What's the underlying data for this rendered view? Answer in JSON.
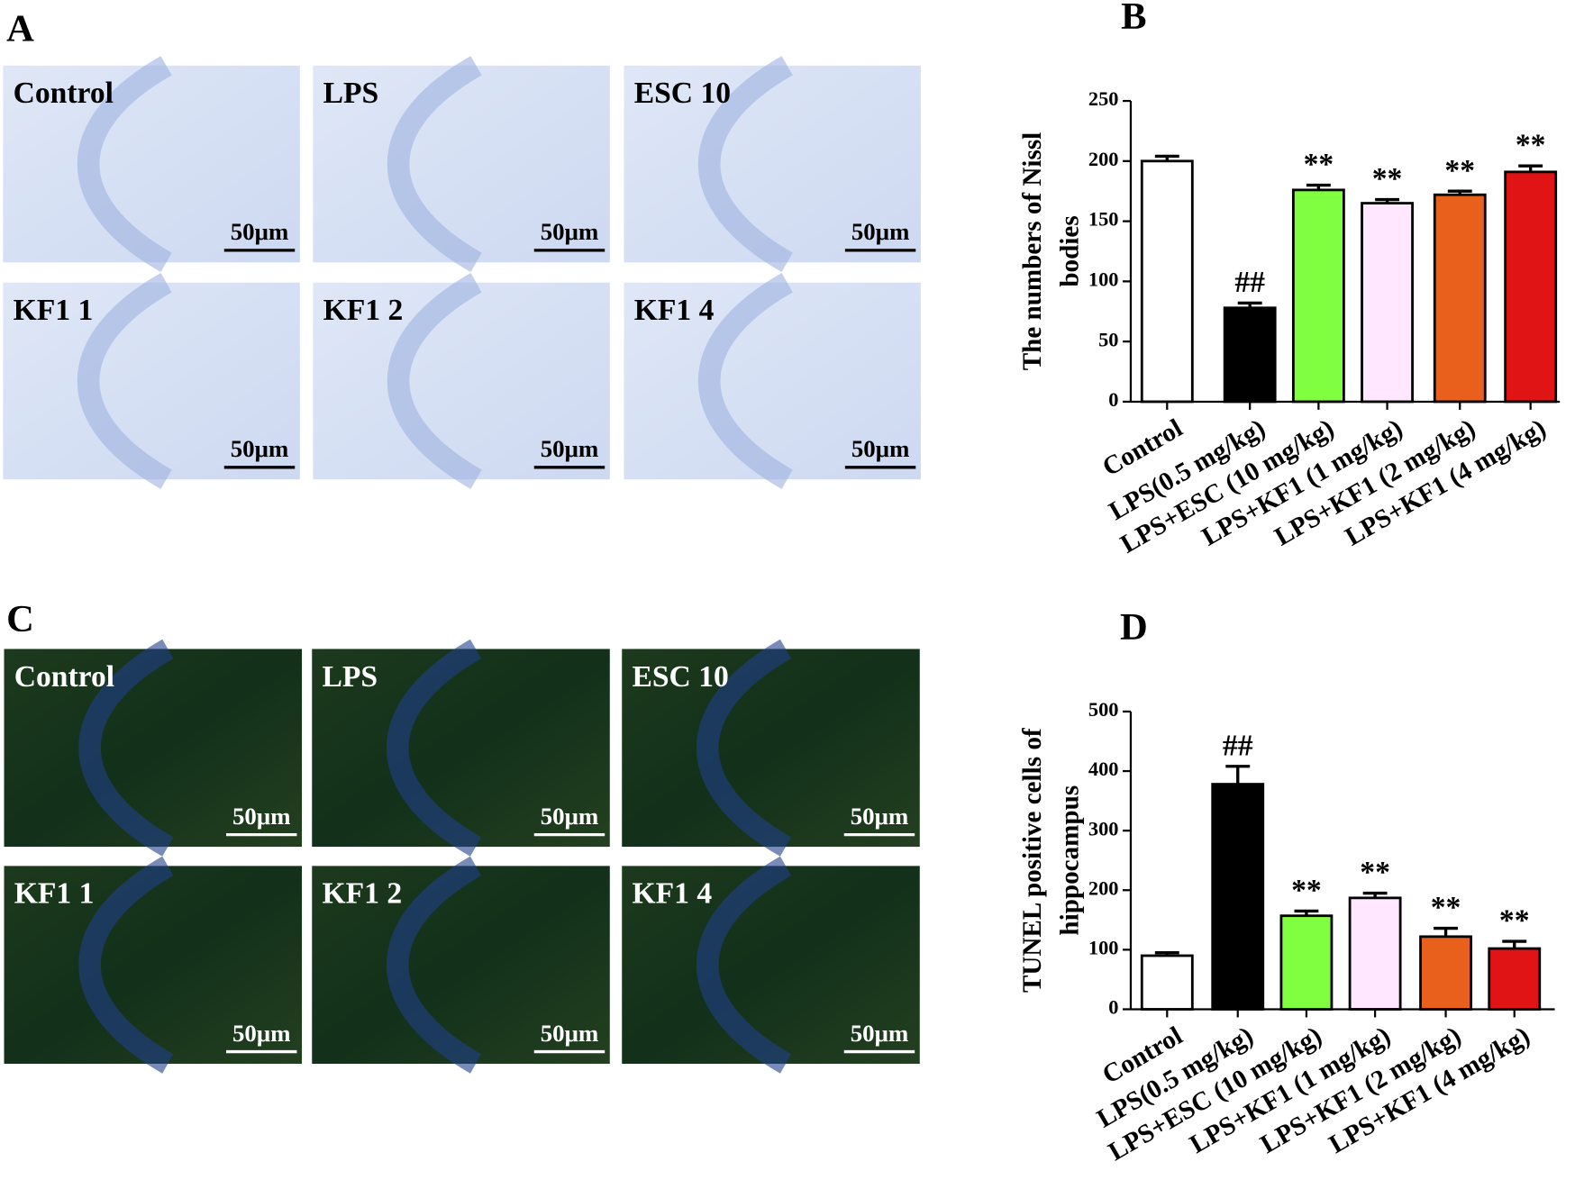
{
  "panels": [
    {
      "label": "A",
      "images": [
        {
          "label": "Control",
          "scale": "50μm"
        },
        {
          "label": "LPS",
          "scale": "50μm"
        },
        {
          "label": "ESC 10",
          "scale": "50μm"
        },
        {
          "label": "KF1 1",
          "scale": "50μm"
        },
        {
          "label": "KF1 2",
          "scale": "50μm"
        },
        {
          "label": "KF1 4",
          "scale": "50μm"
        }
      ]
    },
    {
      "label": "C",
      "images": [
        {
          "label": "Control",
          "scale": "50μm"
        },
        {
          "label": "LPS",
          "scale": "50μm"
        },
        {
          "label": "ESC 10",
          "scale": "50μm"
        },
        {
          "label": "KF1 1",
          "scale": "50μm"
        },
        {
          "label": "KF1 2",
          "scale": "50μm"
        },
        {
          "label": "KF1 4",
          "scale": "50μm"
        }
      ]
    }
  ],
  "chart_data": [
    {
      "type": "bar",
      "panel_label": "B",
      "ylabel": [
        "The numbers of  Nissl",
        "bodies"
      ],
      "categories": [
        "Control",
        "LPS(0.5 mg/kg)",
        "LPS+ESC (10 mg/kg)",
        "LPS+KF1 (1 mg/kg)",
        "LPS+KF1 (2 mg/kg)",
        "LPS+KF1 (4 mg/kg)"
      ],
      "values": [
        200,
        78,
        176,
        165,
        172,
        191
      ],
      "errors": [
        4,
        4,
        4,
        3,
        3,
        5
      ],
      "annotations": [
        null,
        "##",
        "**",
        "**",
        "**",
        "**"
      ],
      "colors": [
        "#ffffff",
        "#000000",
        "#80ff40",
        "#ffe8ff",
        "#e8601c",
        "#e01414"
      ],
      "ylim": [
        0,
        250
      ],
      "yticks": [
        0,
        50,
        100,
        150,
        200,
        250
      ]
    },
    {
      "type": "bar",
      "panel_label": "D",
      "ylabel": [
        "TUNEL positive cells of",
        "hippocampus"
      ],
      "categories": [
        "Control",
        "LPS(0.5 mg/kg)",
        "LPS+ESC (10 mg/kg)",
        "LPS+KF1 (1 mg/kg)",
        "LPS+KF1 (2 mg/kg)",
        "LPS+KF1 (4 mg/kg)"
      ],
      "values": [
        90,
        378,
        157,
        187,
        122,
        102
      ],
      "errors": [
        5,
        30,
        8,
        8,
        14,
        12
      ],
      "annotations": [
        null,
        "##",
        "**",
        "**",
        "**",
        "**"
      ],
      "colors": [
        "#ffffff",
        "#000000",
        "#80ff40",
        "#ffe8ff",
        "#e8601c",
        "#e01414"
      ],
      "ylim": [
        0,
        500
      ],
      "yticks": [
        0,
        100,
        200,
        300,
        400,
        500
      ]
    }
  ]
}
